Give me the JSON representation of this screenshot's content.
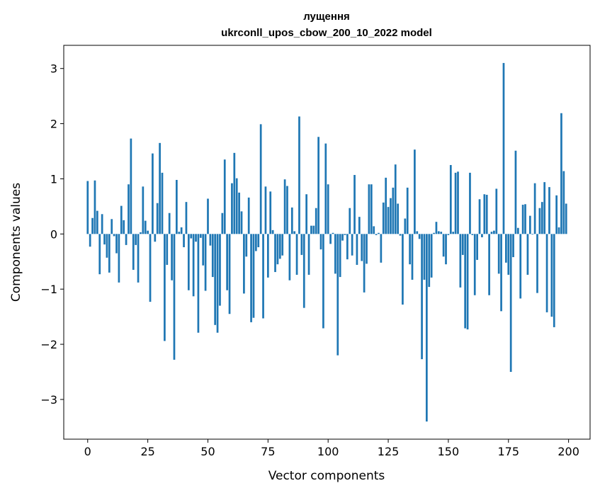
{
  "chart_data": {
    "type": "bar",
    "title": "лущення",
    "subtitle": "ukrconll_upos_cbow_200_10_2022 model",
    "xlabel": "Vector components",
    "ylabel": "Components values",
    "xlim": [
      -9.95,
      208.95
    ],
    "ylim": [
      -3.72,
      3.42
    ],
    "xticks": [
      0,
      25,
      50,
      75,
      100,
      125,
      150,
      175,
      200
    ],
    "yticks": [
      -3,
      -2,
      -1,
      0,
      1,
      2,
      3
    ],
    "grid": false,
    "bar_color": "#1f77b4",
    "values": [
      0.96,
      -0.23,
      0.29,
      0.97,
      0.42,
      -0.73,
      0.36,
      -0.19,
      -0.43,
      -0.7,
      0.27,
      -0.04,
      -0.35,
      -0.88,
      0.51,
      0.25,
      -0.2,
      0.9,
      1.73,
      -0.65,
      -0.2,
      -0.88,
      0.03,
      0.86,
      0.24,
      0.06,
      -1.23,
      1.46,
      -0.14,
      0.56,
      1.65,
      1.11,
      -1.94,
      -0.56,
      0.38,
      -0.84,
      -2.28,
      0.98,
      0.04,
      0.12,
      -0.24,
      0.58,
      -1.02,
      -0.08,
      -1.13,
      -0.14,
      -1.79,
      -0.07,
      -0.57,
      -1.03,
      0.64,
      -0.21,
      -0.78,
      -1.65,
      -1.79,
      -1.3,
      0.38,
      1.35,
      -1.02,
      -1.45,
      0.92,
      1.47,
      1.01,
      0.75,
      0.41,
      -1.08,
      -0.41,
      0.66,
      -1.6,
      -1.52,
      -0.31,
      -0.24,
      1.99,
      -1.53,
      0.86,
      -0.79,
      0.77,
      0.07,
      -0.69,
      -0.55,
      -0.45,
      -0.39,
      0.99,
      0.87,
      -0.84,
      0.48,
      0.05,
      -0.74,
      2.13,
      -0.38,
      -1.34,
      0.72,
      -0.74,
      0.15,
      0.15,
      0.47,
      1.76,
      -0.28,
      -1.71,
      1.64,
      0.9,
      -0.18,
      0.02,
      -0.72,
      -2.2,
      -0.78,
      -0.12,
      -0.02,
      -0.46,
      0.47,
      -0.39,
      1.07,
      -0.56,
      0.31,
      -0.49,
      -1.06,
      -0.54,
      0.9,
      0.9,
      0.14,
      -0.02,
      0.02,
      -0.52,
      0.57,
      1.02,
      0.49,
      0.65,
      0.84,
      1.26,
      0.55,
      -0.03,
      -1.28,
      0.28,
      0.84,
      -0.55,
      -0.83,
      1.53,
      0.05,
      -0.09,
      -2.27,
      -0.83,
      -3.4,
      -0.96,
      -0.79,
      0.02,
      0.22,
      0.05,
      0.04,
      -0.41,
      -0.55,
      -0.02,
      1.25,
      0.04,
      1.11,
      1.13,
      -0.97,
      -0.38,
      -1.71,
      -1.73,
      1.11,
      -0.02,
      -1.11,
      -0.47,
      0.63,
      -0.06,
      0.72,
      0.71,
      -1.11,
      0.04,
      0.06,
      0.82,
      -0.72,
      -1.4,
      3.1,
      -0.52,
      -0.74,
      -2.5,
      -0.42,
      1.51,
      0.11,
      -1.17,
      0.53,
      0.54,
      -0.74,
      0.33,
      -0.01,
      0.92,
      -1.07,
      0.47,
      0.58,
      0.94,
      -1.42,
      0.85,
      -1.5,
      -1.69,
      0.7,
      0.12,
      2.19,
      1.14,
      0.55
    ]
  }
}
